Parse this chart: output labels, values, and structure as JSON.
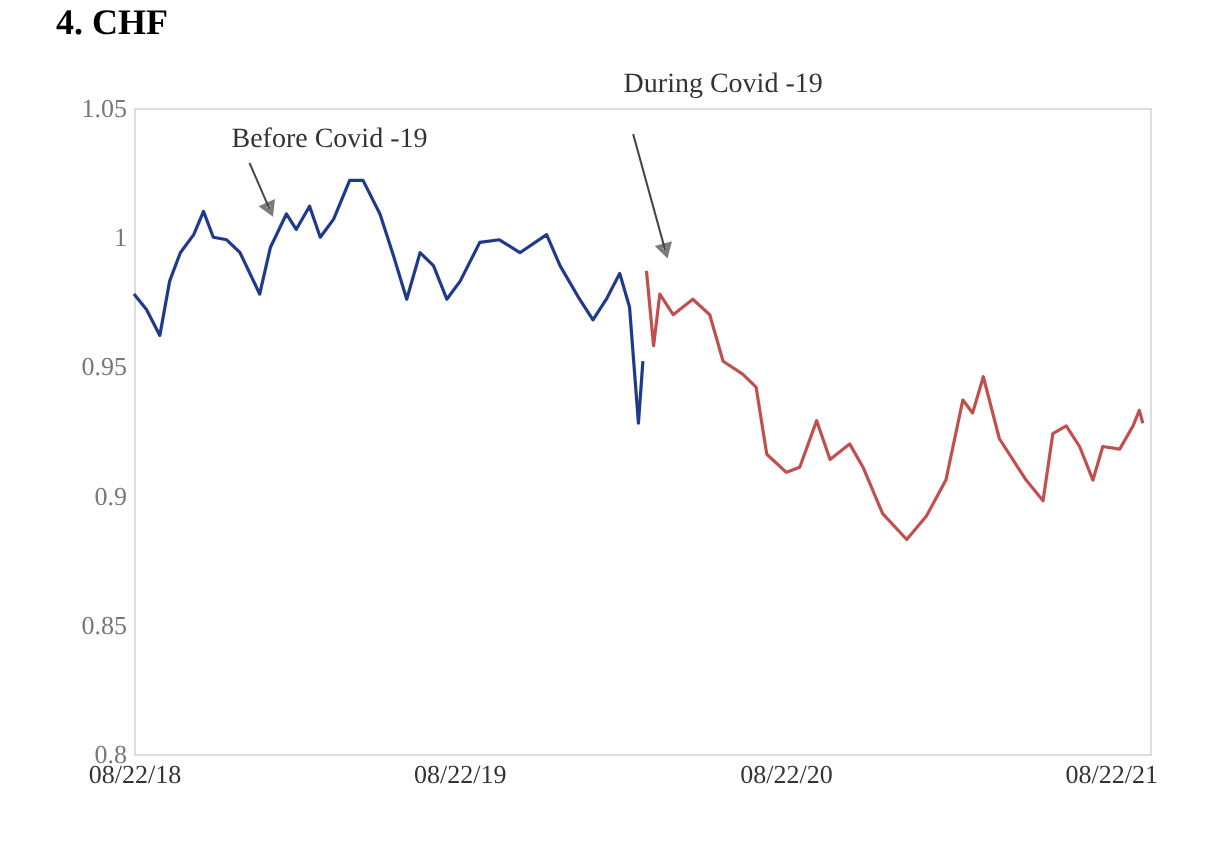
{
  "chart_data": {
    "type": "line",
    "title": "4.   CHF",
    "xlim": [
      "2018-08-22",
      "2021-10-05"
    ],
    "xticks": [
      {
        "value": "2018-08-22",
        "label": "08/22/18"
      },
      {
        "value": "2019-08-22",
        "label": "08/22/19"
      },
      {
        "value": "2020-08-22",
        "label": "08/22/20"
      },
      {
        "value": "2021-08-22",
        "label": "08/22/21"
      }
    ],
    "ylim": [
      0.8,
      1.05
    ],
    "yticks": [
      0.8,
      0.85,
      0.9,
      0.95,
      1,
      1.05
    ],
    "grid": false,
    "line_style": "solid",
    "marker": "none",
    "annotations": [
      {
        "text": "Before Covid -19",
        "x": "2019-01-21",
        "y": 1.011
      },
      {
        "text": "During Covid -19",
        "x": "2020-04-09",
        "y": 0.995
      }
    ],
    "series": [
      {
        "color": "#1f3a8a",
        "x": [
          "2018-08-22",
          "2018-09-05",
          "2018-09-20",
          "2018-10-01",
          "2018-10-13",
          "2018-10-28",
          "2018-11-08",
          "2018-11-19",
          "2018-12-04",
          "2018-12-19",
          "2019-01-10",
          "2019-01-22",
          "2019-02-09",
          "2019-02-20",
          "2019-03-07",
          "2019-03-19",
          "2019-04-03",
          "2019-04-21",
          "2019-05-06",
          "2019-05-25",
          "2019-06-09",
          "2019-06-24",
          "2019-07-09",
          "2019-07-24",
          "2019-08-08",
          "2019-08-23",
          "2019-09-14",
          "2019-10-06",
          "2019-10-29",
          "2019-11-28",
          "2019-12-13",
          "2020-01-04",
          "2020-01-19",
          "2020-02-03",
          "2020-02-18",
          "2020-02-29",
          "2020-03-10",
          "2020-03-15"
        ],
        "values": [
          0.978,
          0.972,
          0.962,
          0.983,
          0.994,
          1.001,
          1.01,
          1.0,
          0.999,
          0.994,
          0.978,
          0.996,
          1.009,
          1.003,
          1.012,
          1.0,
          1.007,
          1.022,
          1.022,
          1.009,
          0.993,
          0.976,
          0.994,
          0.989,
          0.976,
          0.983,
          0.998,
          0.999,
          0.994,
          1.001,
          0.989,
          0.976,
          0.968,
          0.976,
          0.986,
          0.973,
          0.928,
          0.952
        ]
      },
      {
        "color": "#c0504d",
        "x": [
          "2020-03-19",
          "2020-03-27",
          "2020-04-03",
          "2020-04-18",
          "2020-05-10",
          "2020-05-29",
          "2020-06-13",
          "2020-07-05",
          "2020-07-20",
          "2020-08-01",
          "2020-08-23",
          "2020-09-07",
          "2020-09-26",
          "2020-10-11",
          "2020-11-02",
          "2020-11-17",
          "2020-12-09",
          "2021-01-05",
          "2021-01-27",
          "2021-02-18",
          "2021-03-09",
          "2021-03-20",
          "2021-04-01",
          "2021-04-19",
          "2021-05-19",
          "2021-06-07",
          "2021-06-18",
          "2021-07-03",
          "2021-07-18",
          "2021-08-02",
          "2021-08-13",
          "2021-09-01",
          "2021-09-16",
          "2021-09-23",
          "2021-09-27"
        ],
        "values": [
          0.987,
          0.958,
          0.978,
          0.97,
          0.976,
          0.97,
          0.952,
          0.947,
          0.942,
          0.916,
          0.909,
          0.911,
          0.929,
          0.914,
          0.92,
          0.911,
          0.893,
          0.883,
          0.892,
          0.906,
          0.937,
          0.932,
          0.946,
          0.922,
          0.906,
          0.898,
          0.924,
          0.927,
          0.919,
          0.906,
          0.919,
          0.918,
          0.927,
          0.933,
          0.928
        ]
      }
    ]
  }
}
